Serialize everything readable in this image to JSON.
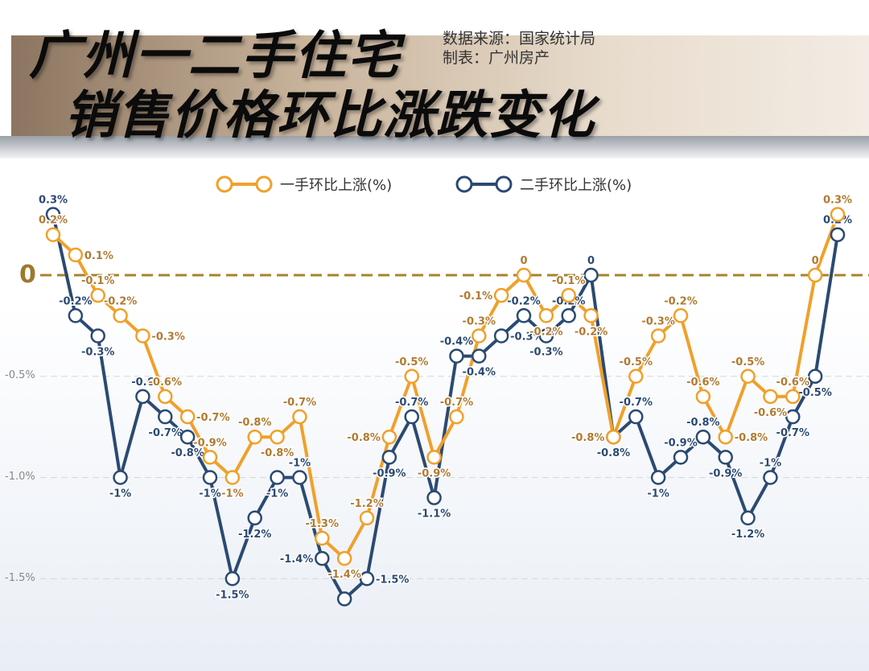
{
  "header": {
    "title_line1": "广州一二手住宅",
    "title_line2": "销售价格环比涨跌变化",
    "source": "数据来源：国家统计局",
    "maker": "制表：广州房产"
  },
  "colors": {
    "new": "#f0a02a",
    "second": "#2b4a72",
    "zero_line": "#a8832e"
  },
  "chart_data": {
    "type": "line",
    "title": "广州一二手住宅销售价格环比涨跌变化",
    "ylim": [
      -1.6,
      0.3
    ],
    "y_ticks": [
      {
        "v": 0,
        "label": "0"
      },
      {
        "v": -0.5,
        "label": "-0.5%"
      },
      {
        "v": -1.0,
        "label": "-1.0%"
      },
      {
        "v": -1.5,
        "label": "-1.5%"
      }
    ],
    "legend_position": "top",
    "series": [
      {
        "name": "一手环比上涨(%)",
        "color": "#f0a02a",
        "values": [
          0.2,
          0.1,
          -0.1,
          -0.2,
          -0.3,
          -0.6,
          -0.7,
          -0.9,
          -1,
          -0.8,
          -0.8,
          -0.7,
          -1.3,
          -1.4,
          -1.2,
          -0.8,
          -0.5,
          -0.9,
          -0.7,
          -0.3,
          -0.1,
          0,
          -0.2,
          -0.1,
          -0.2,
          -0.8,
          -0.5,
          -0.3,
          -0.2,
          -0.6,
          -0.8,
          -0.5,
          -0.6,
          -0.6,
          0,
          0.3
        ],
        "labels": [
          "0.2%",
          "0.1%",
          "-0.1%",
          "-0.2%",
          "-0.3%",
          "-0.6%",
          "-0.7%",
          "-0.9%",
          "-1%",
          "-0.8%",
          "-0.8%",
          "-0.7%",
          "-1.3%",
          "-1.4%",
          "-1.2%",
          "-0.8%",
          "-0.5%",
          "-0.9%",
          "-0.7%",
          "-0.3%",
          "-0.1%",
          "0",
          "-0.2%",
          "-0.1%",
          "-0.2%",
          "-0.8%",
          "-0.5%",
          "-0.3%",
          "-0.2%",
          "-0.6%",
          "-0.8%",
          "-0.5%",
          "-0.6%",
          "-0.6%",
          "0",
          "0.3%"
        ]
      },
      {
        "name": "二手环比上涨(%)",
        "color": "#2b4a72",
        "values": [
          0.3,
          -0.2,
          -0.3,
          -1,
          -0.6,
          -0.7,
          -0.8,
          -1,
          -1.5,
          -1.2,
          -1,
          -1,
          -1.4,
          -1.6,
          -1.5,
          -0.9,
          -0.7,
          -1.1,
          -0.4,
          -0.4,
          -0.3,
          -0.2,
          -0.3,
          -0.2,
          0,
          -0.8,
          -0.7,
          -1,
          -0.9,
          -0.8,
          -0.9,
          -1.2,
          -1,
          -0.7,
          -0.5,
          0.2
        ],
        "labels": [
          "0.3%",
          "-0.2%",
          "-0.3%",
          "-1%",
          "-0.6",
          "-0.7%",
          "-0.8%",
          "-1%",
          "-1.5%",
          "-1.2%",
          "-1%",
          "-1%",
          "-1.4%",
          "",
          "-1.5%",
          "-0.9%",
          "-0.7%",
          "-1.1%",
          "-0.4%",
          "-0.4%",
          "-0.3%",
          "-0.2%",
          "-0.3%",
          "-0.2%",
          "0",
          "-0.8%",
          "-0.7%",
          "-1%",
          "-0.9%",
          "-0.8%",
          "-0.9%",
          "-1.2%",
          "-1%",
          "-0.7%",
          "-0.5%",
          "0.2%"
        ]
      }
    ]
  }
}
